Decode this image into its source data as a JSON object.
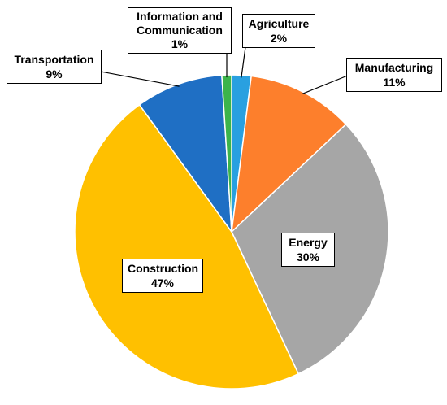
{
  "chart_data": {
    "type": "pie",
    "title": "",
    "start_angle_deg": 0,
    "direction": "clockwise",
    "slices": [
      {
        "name": "Agriculture",
        "value": 2,
        "label": "2%",
        "color": "#29a0e0"
      },
      {
        "name": "Manufacturing",
        "value": 11,
        "label": "11%",
        "color": "#fd7f2c"
      },
      {
        "name": "Energy",
        "value": 30,
        "label": "30%",
        "color": "#a6a6a6"
      },
      {
        "name": "Construction",
        "value": 47,
        "label": "47%",
        "color": "#ffc000"
      },
      {
        "name": "Transportation",
        "value": 9,
        "label": "9%",
        "color": "#1f6fc4"
      },
      {
        "name": "Information and Communication",
        "value": 1,
        "label": "1%",
        "color": "#3cb44b"
      }
    ]
  }
}
